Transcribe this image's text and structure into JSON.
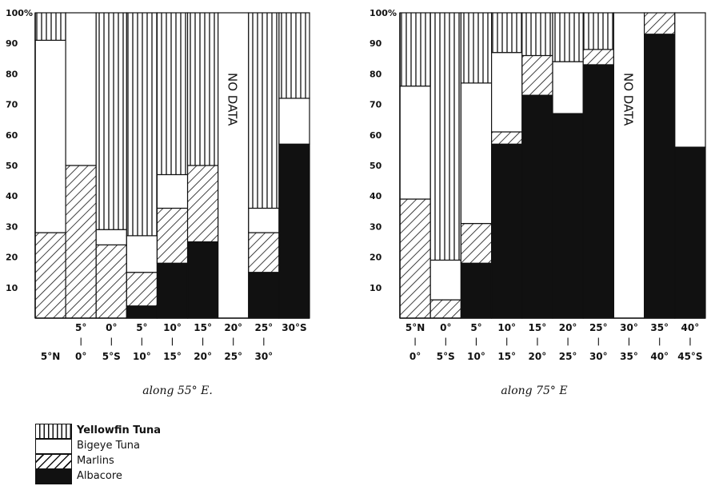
{
  "chart_data": [
    {
      "type": "stacked-bar",
      "title": "",
      "xlabel": "along 55° E.",
      "ylabel": "",
      "ylim": [
        0,
        100
      ],
      "yticks": [
        "10",
        "20",
        "30",
        "40",
        "50",
        "60",
        "70",
        "80",
        "90",
        "100%"
      ],
      "stack_order": [
        "Albacore",
        "Marlins",
        "Bigeye Tuna",
        "Yellowfin Tuna"
      ],
      "categories": [
        {
          "top": "",
          "bottom": "5°N",
          "mid": ""
        },
        {
          "top": "5°",
          "bottom": "0°",
          "mid": "|"
        },
        {
          "top": "0°",
          "bottom": "5°S",
          "mid": "|"
        },
        {
          "top": "5°",
          "bottom": "10°",
          "mid": "|"
        },
        {
          "top": "10°",
          "bottom": "15°",
          "mid": "|"
        },
        {
          "top": "15°",
          "bottom": "20°",
          "mid": "|"
        },
        {
          "top": "20°",
          "bottom": "25°",
          "mid": "|"
        },
        {
          "top": "25°",
          "bottom": "30°",
          "mid": "|"
        },
        {
          "top": "30°S",
          "bottom": "",
          "mid": ""
        }
      ],
      "series": [
        {
          "name": "Albacore",
          "values": [
            0,
            0,
            0,
            4,
            18,
            25,
            null,
            15,
            57
          ]
        },
        {
          "name": "Marlins",
          "values": [
            28,
            50,
            24,
            11,
            18,
            25,
            null,
            13,
            0
          ]
        },
        {
          "name": "Bigeye Tuna",
          "values": [
            63,
            50,
            5,
            12,
            11,
            0,
            null,
            8,
            15
          ]
        },
        {
          "name": "Yellowfin Tuna",
          "values": [
            9,
            0,
            71,
            73,
            53,
            50,
            null,
            64,
            28
          ]
        }
      ],
      "no_data_category": 6,
      "no_data_text": "NO DATA"
    },
    {
      "type": "stacked-bar",
      "title": "",
      "xlabel": "along 75° E",
      "ylabel": "",
      "ylim": [
        0,
        100
      ],
      "yticks": [
        "10",
        "20",
        "30",
        "40",
        "50",
        "60",
        "70",
        "80",
        "90",
        "100%"
      ],
      "stack_order": [
        "Albacore",
        "Marlins",
        "Bigeye Tuna",
        "Yellowfin Tuna"
      ],
      "categories": [
        {
          "top": "5°N",
          "bottom": "0°",
          "mid": "|"
        },
        {
          "top": "0°",
          "bottom": "5°S",
          "mid": "|"
        },
        {
          "top": "5°",
          "bottom": "10°",
          "mid": "|"
        },
        {
          "top": "10°",
          "bottom": "15°",
          "mid": "|"
        },
        {
          "top": "15°",
          "bottom": "20°",
          "mid": "|"
        },
        {
          "top": "20°",
          "bottom": "25°",
          "mid": "|"
        },
        {
          "top": "25°",
          "bottom": "30°",
          "mid": "|"
        },
        {
          "top": "30°",
          "bottom": "35°",
          "mid": "|"
        },
        {
          "top": "35°",
          "bottom": "40°",
          "mid": "|"
        },
        {
          "top": "40°",
          "bottom": "45°S",
          "mid": "|"
        }
      ],
      "series": [
        {
          "name": "Albacore",
          "values": [
            0,
            0,
            18,
            57,
            73,
            67,
            83,
            null,
            93,
            56
          ]
        },
        {
          "name": "Marlins",
          "values": [
            39,
            6,
            13,
            4,
            13,
            0,
            5,
            null,
            7,
            0
          ]
        },
        {
          "name": "Bigeye Tuna",
          "values": [
            37,
            13,
            46,
            26,
            0,
            17,
            0,
            null,
            0,
            44
          ]
        },
        {
          "name": "Yellowfin Tuna",
          "values": [
            24,
            81,
            23,
            13,
            14,
            16,
            12,
            null,
            0,
            0
          ]
        }
      ],
      "no_data_category": 7,
      "no_data_text": "NO DATA"
    }
  ],
  "legend": [
    {
      "name": "Yellowfin Tuna",
      "pattern": "vertical-lines"
    },
    {
      "name": "Bigeye Tuna",
      "pattern": "blank"
    },
    {
      "name": "Marlins",
      "pattern": "diagonal-hatch"
    },
    {
      "name": "Albacore",
      "pattern": "solid-black"
    }
  ],
  "colors": {
    "ink": "#111111",
    "paper": "#ffffff"
  }
}
